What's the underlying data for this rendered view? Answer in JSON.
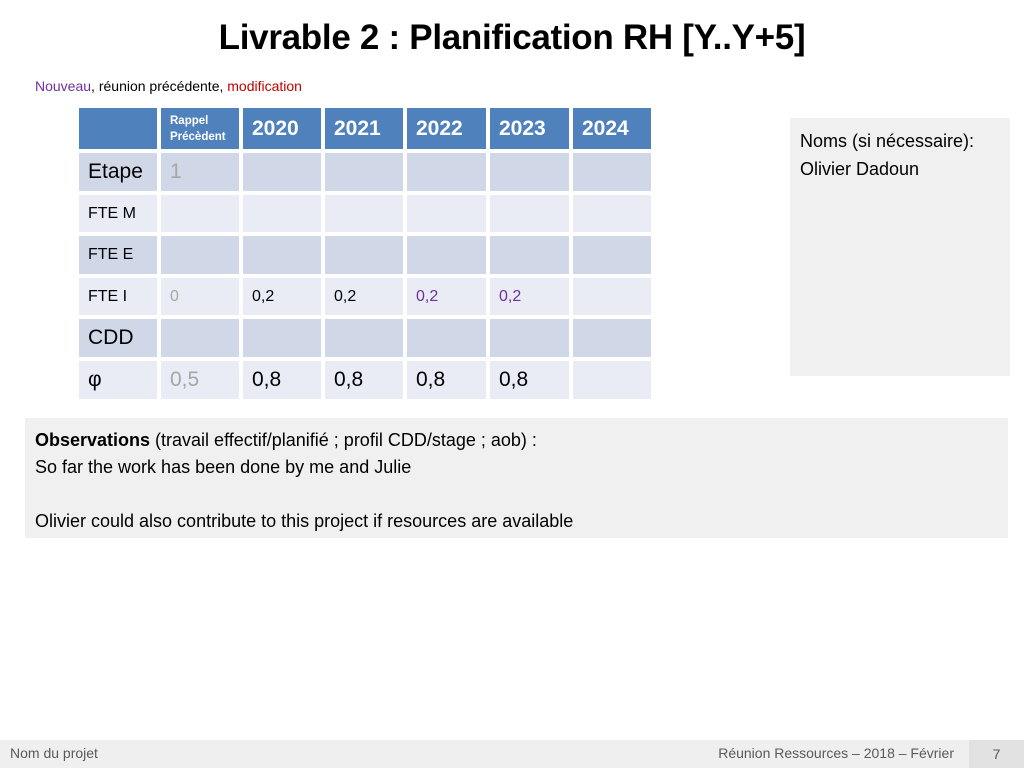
{
  "title": "Livrable 2 : Planification RH [Y..Y+5]",
  "legend": {
    "new": "Nouveau",
    "sep1": ", ",
    "previous": "réunion précédente",
    "sep2": ", ",
    "modified": "modification"
  },
  "table": {
    "header": {
      "recall": "Rappel Précèdent",
      "years": [
        "2020",
        "2021",
        "2022",
        "2023",
        "2024"
      ]
    },
    "rows": {
      "etape": {
        "label": "Etape",
        "recall": "1"
      },
      "fte_m": {
        "label": "FTE M"
      },
      "fte_e": {
        "label": "FTE E"
      },
      "fte_i": {
        "label": "FTE I",
        "recall": "0",
        "values": [
          "0,2",
          "0,2",
          "0,2",
          "0,2",
          ""
        ]
      },
      "cdd": {
        "label": "CDD"
      },
      "phi": {
        "label": "φ",
        "recall": "0,5",
        "values": [
          "0,8",
          "0,8",
          "0,8",
          "0,8",
          ""
        ]
      }
    }
  },
  "names_box": {
    "label": "Noms (si nécessaire):",
    "value": "Olivier Dadoun"
  },
  "observations": {
    "heading": "Observations",
    "heading_rest": " (travail effectif/planifié ; profil CDD/stage ; aob) :",
    "line1": "So far the work has been done by me and Julie",
    "line2": "Olivier could also contribute to this project if resources are available"
  },
  "footer": {
    "project": "Nom du projet",
    "meeting": "Réunion Ressources – 2018 – Février",
    "page": "7"
  }
}
